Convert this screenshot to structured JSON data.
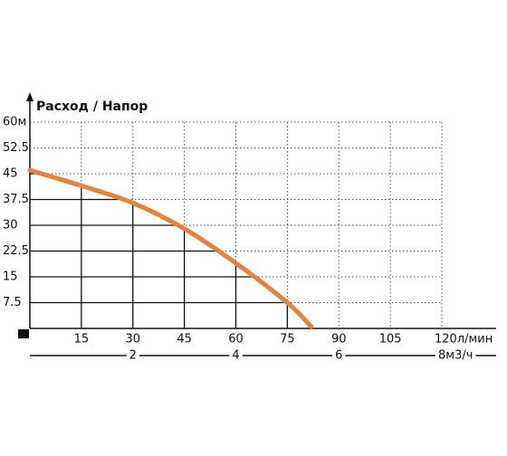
{
  "chart_data": {
    "type": "line",
    "title": "Расход / Напор",
    "x": [
      0,
      15,
      30,
      45,
      60,
      75,
      82
    ],
    "values": [
      46,
      41.5,
      36.5,
      29,
      19,
      7.5,
      0.5
    ],
    "color": "#e8823a",
    "xlim": [
      0,
      120
    ],
    "ylim": [
      0,
      60
    ],
    "xticks": [
      15,
      30,
      45,
      60,
      75,
      90,
      105,
      {
        "value": 120,
        "label": "120л/мин"
      }
    ],
    "yticks": [
      7.5,
      15,
      22.5,
      30,
      37.5,
      45,
      52.5,
      {
        "value": 60,
        "label": "60м"
      }
    ],
    "x2lim": [
      0,
      8
    ],
    "x2ticks": [
      2,
      4,
      6,
      {
        "value": 8,
        "label": "8м3/ч"
      }
    ],
    "grid": true
  }
}
